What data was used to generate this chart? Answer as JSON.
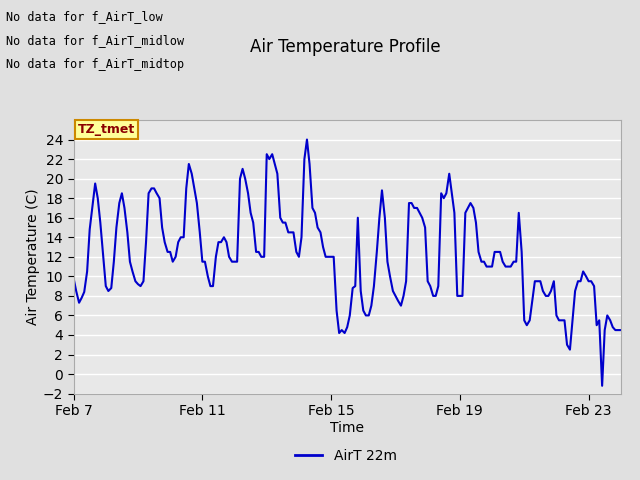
{
  "title": "Air Temperature Profile",
  "xlabel": "Time",
  "ylabel": "Air Temperature (C)",
  "legend_label": "AirT 22m",
  "text_lines": [
    "No data for f_AirT_low",
    "No data for f_AirT_midlow",
    "No data for f_AirT_midtop"
  ],
  "annotation_box": "TZ_tmet",
  "ylim": [
    -2,
    26
  ],
  "yticks": [
    -2,
    0,
    2,
    4,
    6,
    8,
    10,
    12,
    14,
    16,
    18,
    20,
    22,
    24
  ],
  "x_tick_labels": [
    "Feb 7",
    "Feb 11",
    "Feb 15",
    "Feb 19",
    "Feb 23"
  ],
  "x_tick_positions": [
    0,
    4,
    8,
    12,
    16
  ],
  "xlim": [
    0,
    17
  ],
  "background_color": "#e0e0e0",
  "plot_bg_color": "#e8e8e8",
  "line_color": "#0000cc",
  "line_width": 1.5,
  "grid_color": "#ffffff",
  "time_days": [
    0,
    0.08,
    0.17,
    0.25,
    0.33,
    0.42,
    0.5,
    0.58,
    0.67,
    0.75,
    0.83,
    0.92,
    1.0,
    1.08,
    1.17,
    1.25,
    1.33,
    1.42,
    1.5,
    1.58,
    1.67,
    1.75,
    1.83,
    1.92,
    2.0,
    2.08,
    2.17,
    2.25,
    2.33,
    2.42,
    2.5,
    2.58,
    2.67,
    2.75,
    2.83,
    2.92,
    3.0,
    3.08,
    3.17,
    3.25,
    3.33,
    3.42,
    3.5,
    3.58,
    3.67,
    3.75,
    3.83,
    3.92,
    4.0,
    4.08,
    4.17,
    4.25,
    4.33,
    4.42,
    4.5,
    4.58,
    4.67,
    4.75,
    4.83,
    4.92,
    5.0,
    5.08,
    5.17,
    5.25,
    5.33,
    5.42,
    5.5,
    5.58,
    5.67,
    5.75,
    5.83,
    5.92,
    6.0,
    6.08,
    6.17,
    6.25,
    6.33,
    6.42,
    6.5,
    6.58,
    6.67,
    6.75,
    6.83,
    6.92,
    7.0,
    7.08,
    7.17,
    7.25,
    7.33,
    7.42,
    7.5,
    7.58,
    7.67,
    7.75,
    7.83,
    7.92,
    8.0,
    8.08,
    8.17,
    8.25,
    8.33,
    8.42,
    8.5,
    8.58,
    8.67,
    8.75,
    8.83,
    8.92,
    9.0,
    9.08,
    9.17,
    9.25,
    9.33,
    9.42,
    9.5,
    9.58,
    9.67,
    9.75,
    9.83,
    9.92,
    10.0,
    10.08,
    10.17,
    10.25,
    10.33,
    10.42,
    10.5,
    10.58,
    10.67,
    10.75,
    10.83,
    10.92,
    11.0,
    11.08,
    11.17,
    11.25,
    11.33,
    11.42,
    11.5,
    11.58,
    11.67,
    11.75,
    11.83,
    11.92,
    12.0,
    12.08,
    12.17,
    12.25,
    12.33,
    12.42,
    12.5,
    12.58,
    12.67,
    12.75,
    12.83,
    12.92,
    13.0,
    13.08,
    13.17,
    13.25,
    13.33,
    13.42,
    13.5,
    13.58,
    13.67,
    13.75,
    13.83,
    13.92,
    14.0,
    14.08,
    14.17,
    14.25,
    14.33,
    14.42,
    14.5,
    14.58,
    14.67,
    14.75,
    14.83,
    14.92,
    15.0,
    15.08,
    15.17,
    15.25,
    15.33,
    15.42,
    15.5,
    15.58,
    15.67,
    15.75,
    15.83,
    15.92,
    16.0,
    16.08,
    16.17,
    16.25,
    16.33,
    16.42,
    16.5,
    16.58,
    16.67,
    16.75,
    16.83,
    16.92,
    17.0
  ],
  "temps": [
    9.8,
    8.5,
    7.3,
    7.8,
    8.4,
    10.5,
    14.8,
    17.0,
    19.5,
    18.0,
    15.5,
    12.0,
    9.0,
    8.5,
    8.8,
    11.5,
    15.0,
    17.5,
    18.5,
    17.0,
    14.5,
    11.5,
    10.5,
    9.5,
    9.2,
    9.0,
    9.5,
    13.5,
    18.5,
    19.0,
    19.0,
    18.5,
    18.0,
    15.0,
    13.5,
    12.5,
    12.5,
    11.5,
    12.0,
    13.5,
    14.0,
    14.0,
    19.0,
    21.5,
    20.5,
    19.0,
    17.5,
    14.5,
    11.5,
    11.5,
    10.0,
    9.0,
    9.0,
    12.0,
    13.5,
    13.5,
    14.0,
    13.5,
    12.0,
    11.5,
    11.5,
    11.5,
    20.0,
    21.0,
    20.0,
    18.5,
    16.5,
    15.5,
    12.5,
    12.5,
    12.0,
    12.0,
    22.5,
    22.0,
    22.5,
    21.5,
    20.5,
    16.0,
    15.5,
    15.5,
    14.5,
    14.5,
    14.5,
    12.5,
    12.0,
    14.0,
    22.0,
    24.0,
    21.5,
    17.0,
    16.5,
    15.0,
    14.5,
    13.0,
    12.0,
    12.0,
    12.0,
    12.0,
    6.5,
    4.2,
    4.5,
    4.2,
    4.8,
    6.0,
    8.8,
    9.0,
    16.0,
    8.5,
    6.5,
    6.0,
    6.0,
    7.0,
    9.0,
    12.5,
    16.0,
    18.8,
    16.0,
    11.5,
    10.0,
    8.5,
    8.0,
    7.5,
    7.0,
    8.0,
    9.5,
    17.5,
    17.5,
    17.0,
    17.0,
    16.5,
    16.0,
    15.0,
    9.5,
    9.0,
    8.0,
    8.0,
    9.0,
    18.5,
    18.0,
    18.5,
    20.5,
    18.5,
    16.5,
    8.0,
    8.0,
    8.0,
    16.5,
    17.0,
    17.5,
    17.0,
    15.5,
    12.5,
    11.5,
    11.5,
    11.0,
    11.0,
    11.0,
    12.5,
    12.5,
    12.5,
    11.5,
    11.0,
    11.0,
    11.0,
    11.5,
    11.5,
    16.5,
    12.5,
    5.5,
    5.0,
    5.5,
    7.5,
    9.5,
    9.5,
    9.5,
    8.5,
    8.0,
    8.0,
    8.5,
    9.5,
    6.0,
    5.5,
    5.5,
    5.5,
    3.0,
    2.5,
    5.5,
    8.5,
    9.5,
    9.5,
    10.5,
    10.0,
    9.5,
    9.5,
    9.0,
    5.0,
    5.5,
    -1.2,
    4.5,
    6.0,
    5.5,
    4.8,
    4.5,
    4.5,
    4.5
  ]
}
